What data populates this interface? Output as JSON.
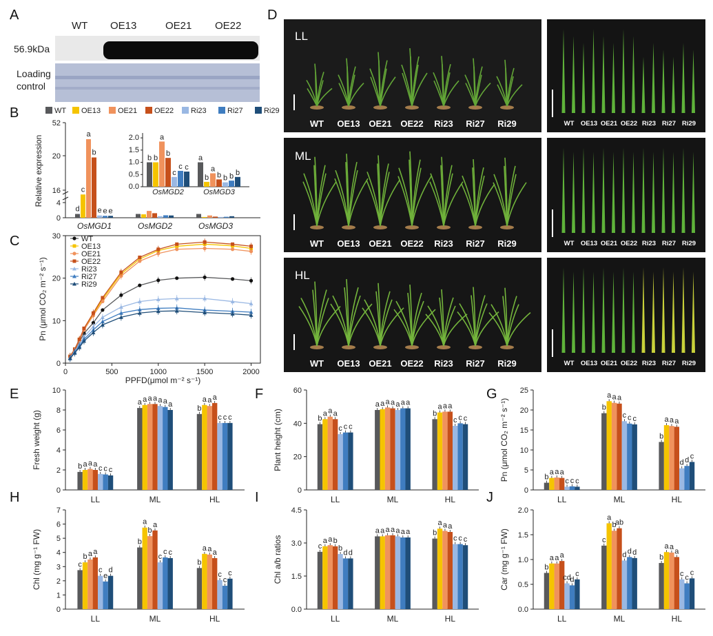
{
  "colors": {
    "WT": "#58595b",
    "OE13": "#f5c400",
    "OE21": "#f0925c",
    "OE22": "#c6501b",
    "Ri23": "#9ab8e3",
    "Ri27": "#3f7dc0",
    "Ri29": "#1f4e79"
  },
  "genotypes": [
    "WT",
    "OE13",
    "OE21",
    "OE22",
    "Ri23",
    "Ri27",
    "Ri29"
  ],
  "panel_letters": [
    "A",
    "B",
    "C",
    "D",
    "E",
    "F",
    "G",
    "H",
    "I",
    "J"
  ],
  "panelA": {
    "header": [
      "WT",
      "OE13",
      "OE21",
      "OE22"
    ],
    "band_label": "56.9kDa",
    "loading_label_1": "Loading",
    "loading_label_2": "control"
  },
  "panelD": {
    "conditions": [
      "LL",
      "ML",
      "HL"
    ],
    "plant_labels": [
      "WT",
      "OE13",
      "OE21",
      "OE22",
      "Ri23",
      "Ri27",
      "Ri29"
    ],
    "leaf_labels": [
      "WT",
      "OE13",
      "OE21",
      "OE22",
      "Ri23",
      "Ri27",
      "Ri29"
    ]
  },
  "chart_data": [
    {
      "id": "B",
      "type": "bar",
      "ylabel": "Relative expression",
      "categories": [
        "OsMGD1",
        "OsMGD2",
        "OsMGD3"
      ],
      "yticks": [
        "0",
        "4",
        "16",
        "20",
        "52"
      ],
      "series": [
        {
          "name": "WT",
          "values": [
            1.0,
            1.0,
            1.0
          ],
          "letters": [
            "d",
            "",
            ""
          ]
        },
        {
          "name": "OE13",
          "values": [
            15.5,
            0.9,
            0.2
          ],
          "letters": [
            "c",
            "",
            ""
          ]
        },
        {
          "name": "OE21",
          "values": [
            36.0,
            1.8,
            0.6
          ],
          "letters": [
            "a",
            "",
            ""
          ]
        },
        {
          "name": "OE22",
          "values": [
            19.8,
            1.2,
            0.3
          ],
          "letters": [
            "b",
            "",
            ""
          ]
        },
        {
          "name": "Ri23",
          "values": [
            0.6,
            0.4,
            0.2
          ],
          "letters": [
            "e",
            "",
            ""
          ]
        },
        {
          "name": "Ri27",
          "values": [
            0.5,
            0.65,
            0.25
          ],
          "letters": [
            "e",
            "",
            ""
          ]
        },
        {
          "name": "Ri29",
          "values": [
            0.5,
            0.6,
            0.4
          ],
          "letters": [
            "e",
            "",
            ""
          ]
        }
      ],
      "inset": {
        "categories": [
          "OsMGD2",
          "OsMGD3"
        ],
        "yticks": [
          "0.0",
          "0.5",
          "1.0",
          "1.5",
          "2.0"
        ],
        "ylim": [
          0,
          2.2
        ],
        "series": [
          {
            "name": "WT",
            "values": [
              1.0,
              1.0
            ],
            "letters": [
              "b",
              "a"
            ]
          },
          {
            "name": "OE13",
            "values": [
              1.0,
              0.2
            ],
            "letters": [
              "b",
              "b"
            ]
          },
          {
            "name": "OE21",
            "values": [
              1.85,
              0.55
            ],
            "letters": [
              "a",
              "a"
            ]
          },
          {
            "name": "OE22",
            "values": [
              1.18,
              0.3
            ],
            "letters": [
              "b",
              "b"
            ]
          },
          {
            "name": "Ri23",
            "values": [
              0.4,
              0.18
            ],
            "letters": [
              "c",
              "b"
            ]
          },
          {
            "name": "Ri27",
            "values": [
              0.65,
              0.25
            ],
            "letters": [
              "c",
              "b"
            ]
          },
          {
            "name": "Ri29",
            "values": [
              0.62,
              0.4
            ],
            "letters": [
              "c",
              "b"
            ]
          }
        ]
      }
    },
    {
      "id": "C",
      "type": "line",
      "xlabel": "PPFD(μmol m⁻² s⁻¹)",
      "ylabel": "Pn (μmol CO₂ m⁻² s⁻¹)",
      "xlim": [
        0,
        2100
      ],
      "ylim": [
        0,
        30
      ],
      "xticks": [
        0,
        500,
        1000,
        1500,
        2000
      ],
      "yticks": [
        0,
        10,
        20,
        30
      ],
      "x": [
        50,
        100,
        150,
        200,
        300,
        400,
        600,
        800,
        1000,
        1200,
        1500,
        1800,
        2000
      ],
      "series": [
        {
          "name": "WT",
          "marker": "circle",
          "values": [
            1.5,
            3.0,
            5.0,
            7.0,
            9.5,
            12.5,
            16.0,
            18.3,
            19.5,
            20.0,
            20.2,
            19.8,
            19.4
          ]
        },
        {
          "name": "OE13",
          "marker": "square",
          "values": [
            1.6,
            3.3,
            5.5,
            8.0,
            11.5,
            15.0,
            21.0,
            24.5,
            26.5,
            27.5,
            28.0,
            27.6,
            27.0
          ]
        },
        {
          "name": "OE21",
          "marker": "circle",
          "values": [
            1.6,
            3.2,
            5.3,
            7.8,
            11.2,
            14.5,
            20.5,
            24.0,
            25.8,
            26.8,
            27.0,
            26.8,
            26.3
          ]
        },
        {
          "name": "OE22",
          "marker": "square",
          "values": [
            1.6,
            3.3,
            5.6,
            8.2,
            11.8,
            15.4,
            21.4,
            24.9,
            26.8,
            28.0,
            28.5,
            28.0,
            27.5
          ]
        },
        {
          "name": "Ri23",
          "marker": "triangle",
          "values": [
            1.3,
            2.8,
            4.4,
            6.2,
            8.6,
            10.8,
            13.2,
            14.5,
            15.0,
            15.2,
            15.2,
            14.5,
            14.0
          ]
        },
        {
          "name": "Ri27",
          "marker": "triangle",
          "values": [
            1.2,
            2.6,
            4.0,
            5.6,
            7.8,
            9.8,
            11.8,
            12.6,
            12.9,
            13.0,
            12.5,
            12.2,
            12.0
          ]
        },
        {
          "name": "Ri29",
          "marker": "triangle",
          "values": [
            1.1,
            2.4,
            3.7,
            5.2,
            7.2,
            9.0,
            10.8,
            11.8,
            12.2,
            12.3,
            11.9,
            11.6,
            11.3
          ]
        }
      ]
    },
    {
      "id": "E",
      "type": "bar",
      "ylabel": "Fresh weight (g)",
      "categories": [
        "LL",
        "ML",
        "HL"
      ],
      "ylim": [
        0,
        10
      ],
      "yticks": [
        0,
        2,
        4,
        6,
        8,
        10
      ],
      "series": [
        {
          "name": "WT",
          "values": [
            1.8,
            8.2,
            7.6
          ],
          "letters": [
            "b",
            "a",
            "b"
          ]
        },
        {
          "name": "OE13",
          "values": [
            2.0,
            8.5,
            8.5
          ],
          "letters": [
            "a",
            "a",
            "a"
          ]
        },
        {
          "name": "OE21",
          "values": [
            2.1,
            8.6,
            8.4
          ],
          "letters": [
            "a",
            "a",
            "a"
          ]
        },
        {
          "name": "OE22",
          "values": [
            2.0,
            8.6,
            8.7
          ],
          "letters": [
            "a",
            "a",
            "a"
          ]
        },
        {
          "name": "Ri23",
          "values": [
            1.6,
            8.4,
            6.7
          ],
          "letters": [
            "c",
            "a",
            "c"
          ]
        },
        {
          "name": "Ri27",
          "values": [
            1.55,
            8.3,
            6.7
          ],
          "letters": [
            "c",
            "a",
            "c"
          ]
        },
        {
          "name": "Ri29",
          "values": [
            1.45,
            8.0,
            6.7
          ],
          "letters": [
            "c",
            "a",
            "c"
          ]
        }
      ]
    },
    {
      "id": "F",
      "type": "bar",
      "ylabel": "Plant height (cm)",
      "categories": [
        "LL",
        "ML",
        "HL"
      ],
      "ylim": [
        0,
        60
      ],
      "yticks": [
        0,
        20,
        40,
        60
      ],
      "series": [
        {
          "name": "WT",
          "values": [
            39.5,
            48.0,
            42.5
          ],
          "letters": [
            "b",
            "a",
            "b"
          ]
        },
        {
          "name": "OE13",
          "values": [
            42.5,
            48.5,
            46.5
          ],
          "letters": [
            "a",
            "a",
            "a"
          ]
        },
        {
          "name": "OE21",
          "values": [
            44.0,
            49.5,
            47.0
          ],
          "letters": [
            "a",
            "a",
            "a"
          ]
        },
        {
          "name": "OE22",
          "values": [
            42.5,
            49.0,
            47.0
          ],
          "letters": [
            "a",
            "a",
            "a"
          ]
        },
        {
          "name": "Ri23",
          "values": [
            33.5,
            48.0,
            38.5
          ],
          "letters": [
            "c",
            "a",
            "c"
          ]
        },
        {
          "name": "Ri27",
          "values": [
            34.5,
            49.0,
            40.0
          ],
          "letters": [
            "c",
            "a",
            "c"
          ]
        },
        {
          "name": "Ri29",
          "values": [
            34.5,
            49.0,
            39.5
          ],
          "letters": [
            "c",
            "a",
            "c"
          ]
        }
      ]
    },
    {
      "id": "G",
      "type": "bar",
      "ylabel": "Pn (μmol CO₂ m⁻² s⁻¹)",
      "categories": [
        "LL",
        "ML",
        "HL"
      ],
      "ylim": [
        0,
        25
      ],
      "yticks": [
        0,
        5,
        10,
        15,
        20,
        25
      ],
      "series": [
        {
          "name": "WT",
          "values": [
            1.8,
            19.2,
            12.0
          ],
          "letters": [
            "b",
            "b",
            "b"
          ]
        },
        {
          "name": "OE13",
          "values": [
            3.0,
            22.2,
            16.2
          ],
          "letters": [
            "a",
            "a",
            "a"
          ]
        },
        {
          "name": "OE21",
          "values": [
            3.1,
            21.8,
            16.0
          ],
          "letters": [
            "a",
            "a",
            "a"
          ]
        },
        {
          "name": "OE22",
          "values": [
            3.0,
            21.6,
            15.8
          ],
          "letters": [
            "a",
            "a",
            "a"
          ]
        },
        {
          "name": "Ri23",
          "values": [
            0.8,
            17.2,
            5.4
          ],
          "letters": [
            "c",
            "c",
            "d"
          ]
        },
        {
          "name": "Ri27",
          "values": [
            0.9,
            16.6,
            6.0
          ],
          "letters": [
            "c",
            "c",
            "d"
          ]
        },
        {
          "name": "Ri29",
          "values": [
            0.8,
            16.4,
            7.0
          ],
          "letters": [
            "c",
            "c",
            "c"
          ]
        }
      ]
    },
    {
      "id": "H",
      "type": "bar",
      "ylabel": "Chl (mg g⁻¹ FW)",
      "categories": [
        "LL",
        "ML",
        "HL"
      ],
      "ylim": [
        0,
        7
      ],
      "yticks": [
        0,
        1,
        2,
        3,
        4,
        5,
        6,
        7
      ],
      "series": [
        {
          "name": "WT",
          "values": [
            2.75,
            4.35,
            2.9
          ],
          "letters": [
            "c",
            "b",
            "b"
          ]
        },
        {
          "name": "OE13",
          "values": [
            3.3,
            5.75,
            3.9
          ],
          "letters": [
            "b",
            "a",
            "a"
          ]
        },
        {
          "name": "OE21",
          "values": [
            3.5,
            5.15,
            3.85
          ],
          "letters": [
            "a",
            "b",
            "a"
          ]
        },
        {
          "name": "OE22",
          "values": [
            3.65,
            5.55,
            3.6
          ],
          "letters": [
            "a",
            "a",
            "a"
          ]
        },
        {
          "name": "Ri23",
          "values": [
            2.35,
            3.3,
            2.05
          ],
          "letters": [
            "c",
            "c",
            "c"
          ]
        },
        {
          "name": "Ri27",
          "values": [
            1.95,
            3.65,
            1.65
          ],
          "letters": [
            "e",
            "c",
            "c"
          ]
        },
        {
          "name": "Ri29",
          "values": [
            2.35,
            3.6,
            2.15
          ],
          "letters": [
            "d",
            "c",
            "c"
          ]
        }
      ]
    },
    {
      "id": "I",
      "type": "bar",
      "ylabel": "Chl a/b ratios",
      "categories": [
        "LL",
        "ML",
        "HL"
      ],
      "ylim": [
        0,
        4.5
      ],
      "yticks": [
        "0.0",
        "1.5",
        "3.0",
        "4.5"
      ],
      "series": [
        {
          "name": "WT",
          "values": [
            2.6,
            3.3,
            3.2
          ],
          "letters": [
            "c",
            "a",
            "b"
          ]
        },
        {
          "name": "OE13",
          "values": [
            2.85,
            3.3,
            3.65
          ],
          "letters": [
            "a",
            "a",
            "a"
          ]
        },
        {
          "name": "OE21",
          "values": [
            2.9,
            3.35,
            3.55
          ],
          "letters": [
            "a",
            "a",
            "a"
          ]
        },
        {
          "name": "OE22",
          "values": [
            2.85,
            3.35,
            3.5
          ],
          "letters": [
            "b",
            "a",
            "a"
          ]
        },
        {
          "name": "Ri23",
          "values": [
            2.5,
            3.3,
            2.95
          ],
          "letters": [
            "b",
            "a",
            "c"
          ]
        },
        {
          "name": "Ri27",
          "values": [
            2.3,
            3.25,
            2.95
          ],
          "letters": [
            "d",
            "a",
            "c"
          ]
        },
        {
          "name": "Ri29",
          "values": [
            2.3,
            3.25,
            2.9
          ],
          "letters": [
            "d",
            "a",
            "c"
          ]
        }
      ]
    },
    {
      "id": "J",
      "type": "bar",
      "ylabel": "Car (mg g⁻¹ FW)",
      "categories": [
        "LL",
        "ML",
        "HL"
      ],
      "ylim": [
        0,
        2
      ],
      "yticks": [
        "0.0",
        "0.5",
        "1.0",
        "1.5",
        "2.0"
      ],
      "series": [
        {
          "name": "WT",
          "values": [
            0.73,
            1.28,
            0.93
          ],
          "letters": [
            "b",
            "c",
            "b"
          ]
        },
        {
          "name": "OE13",
          "values": [
            0.92,
            1.73,
            1.15
          ],
          "letters": [
            "a",
            "a",
            "a"
          ]
        },
        {
          "name": "OE21",
          "values": [
            0.92,
            1.58,
            1.14
          ],
          "letters": [
            "a",
            "b",
            "a"
          ]
        },
        {
          "name": "OE22",
          "values": [
            0.97,
            1.63,
            1.05
          ],
          "letters": [
            "a",
            "ab",
            "a"
          ]
        },
        {
          "name": "Ri23",
          "values": [
            0.52,
            0.98,
            0.6
          ],
          "letters": [
            "cd",
            "d",
            "c"
          ]
        },
        {
          "name": "Ri27",
          "values": [
            0.48,
            1.05,
            0.52
          ],
          "letters": [
            "d",
            "d",
            "c"
          ]
        },
        {
          "name": "Ri29",
          "values": [
            0.6,
            1.03,
            0.62
          ],
          "letters": [
            "c",
            "d",
            "c"
          ]
        }
      ]
    }
  ]
}
